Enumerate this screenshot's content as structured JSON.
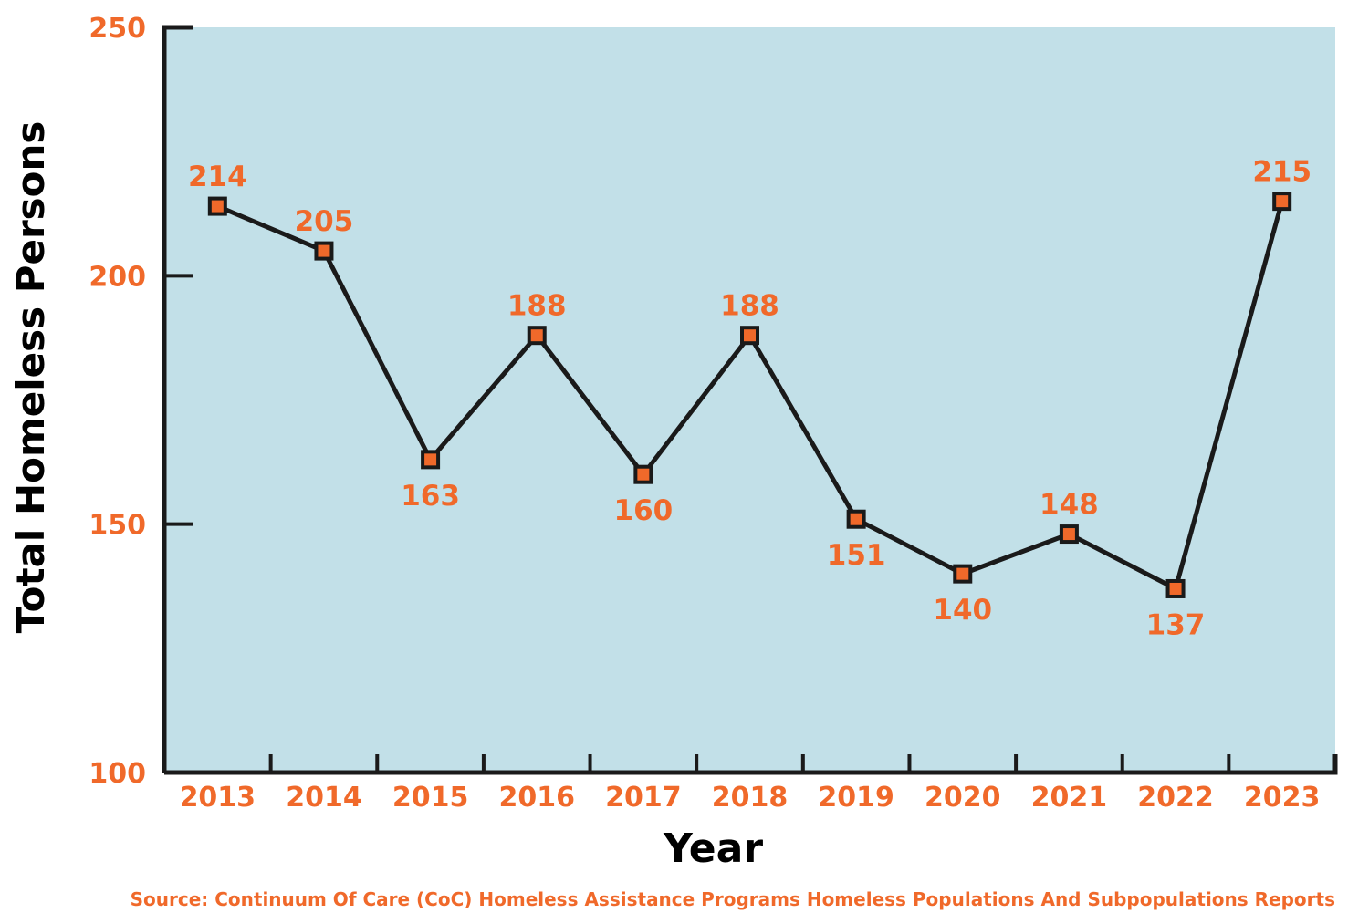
{
  "chart_data": {
    "type": "line",
    "title": "",
    "xlabel": "Year",
    "ylabel": "Total Homeless Persons",
    "ylim": [
      100,
      250
    ],
    "yticks": [
      100,
      150,
      200,
      250
    ],
    "grid": false,
    "categories": [
      "2013",
      "2014",
      "2015",
      "2016",
      "2017",
      "2018",
      "2019",
      "2020",
      "2021",
      "2022",
      "2023"
    ],
    "values": [
      214,
      205,
      163,
      188,
      160,
      188,
      151,
      140,
      148,
      137,
      215
    ],
    "label_positions": [
      "above",
      "above",
      "below",
      "above",
      "below",
      "above",
      "below",
      "below",
      "above",
      "below",
      "above"
    ],
    "source": "Source: Continuum Of Care (CoC) Homeless Assistance Programs Homeless Populations And Subpopulations Reports"
  },
  "colors": {
    "plot_background": "#c2e0e8",
    "accent": "#f0692a",
    "line": "#1a1a1a",
    "marker_fill": "#f0692a",
    "marker_stroke": "#1a1a1a"
  }
}
